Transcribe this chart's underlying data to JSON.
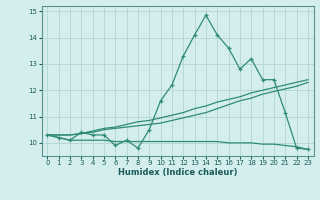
{
  "title": "",
  "xlabel": "Humidex (Indice chaleur)",
  "ylabel": "",
  "x": [
    0,
    1,
    2,
    3,
    4,
    5,
    6,
    7,
    8,
    9,
    10,
    11,
    12,
    13,
    14,
    15,
    16,
    17,
    18,
    19,
    20,
    21,
    22,
    23
  ],
  "y_main": [
    10.3,
    10.2,
    10.1,
    10.4,
    10.3,
    10.3,
    9.9,
    10.1,
    9.8,
    10.5,
    11.6,
    12.2,
    13.3,
    14.1,
    14.85,
    14.1,
    13.6,
    12.8,
    13.2,
    12.4,
    12.4,
    11.15,
    9.8,
    9.75
  ],
  "y_line1": [
    10.3,
    10.3,
    10.3,
    10.35,
    10.45,
    10.55,
    10.6,
    10.7,
    10.8,
    10.85,
    10.95,
    11.05,
    11.15,
    11.3,
    11.4,
    11.55,
    11.65,
    11.75,
    11.9,
    12.0,
    12.1,
    12.2,
    12.3,
    12.4
  ],
  "y_line2": [
    10.3,
    10.3,
    10.3,
    10.35,
    10.4,
    10.5,
    10.55,
    10.6,
    10.65,
    10.7,
    10.75,
    10.85,
    10.95,
    11.05,
    11.15,
    11.3,
    11.45,
    11.6,
    11.7,
    11.85,
    11.95,
    12.05,
    12.15,
    12.3
  ],
  "y_flat": [
    10.3,
    10.2,
    10.1,
    10.1,
    10.1,
    10.1,
    10.05,
    10.05,
    10.05,
    10.05,
    10.05,
    10.05,
    10.05,
    10.05,
    10.05,
    10.05,
    10.0,
    10.0,
    10.0,
    9.95,
    9.95,
    9.9,
    9.85,
    9.75
  ],
  "bg_color": "#d4eeee",
  "grid_color": "#b8d8d8",
  "line_color": "#2e8b77",
  "ylim": [
    9.5,
    15.2
  ],
  "xlim": [
    -0.5,
    23.5
  ],
  "yticks": [
    10,
    11,
    12,
    13,
    14,
    15
  ],
  "xticks": [
    0,
    1,
    2,
    3,
    4,
    5,
    6,
    7,
    8,
    9,
    10,
    11,
    12,
    13,
    14,
    15,
    16,
    17,
    18,
    19,
    20,
    21,
    22,
    23
  ]
}
